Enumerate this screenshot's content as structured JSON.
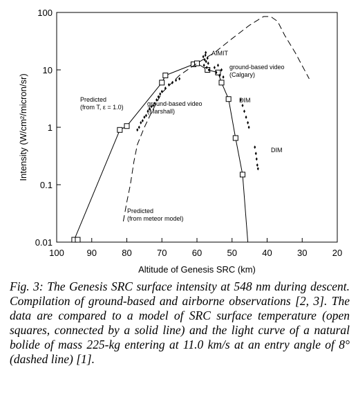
{
  "chart_data": {
    "type": "line",
    "xlabel": "Altitude of Genesis SRC (km)",
    "ylabel": "Intensity (W/cm²/micron/sr)",
    "xlim": [
      100,
      20
    ],
    "xticks": [
      100,
      90,
      80,
      70,
      60,
      50,
      40,
      30,
      20
    ],
    "ylim": [
      0.01,
      100
    ],
    "yticks": [
      100,
      10,
      1,
      0.1,
      0.01
    ],
    "ylog": true,
    "series": [
      {
        "style": "solid",
        "x": [
          95,
          82,
          80,
          70,
          69,
          61,
          60,
          57,
          54,
          53,
          51,
          49,
          47,
          45.5
        ],
        "values": [
          0.011,
          0.9,
          1.05,
          6,
          8,
          12.5,
          13,
          10,
          9,
          6,
          3.1,
          0.65,
          0.15,
          0.01
        ]
      },
      {
        "style": "squares",
        "x": [
          95,
          94,
          82,
          80,
          70,
          69,
          61,
          60,
          57,
          54,
          53,
          51,
          49,
          47
        ],
        "values": [
          0.011,
          0.011,
          0.9,
          1.05,
          6,
          8,
          12.5,
          13,
          10,
          9,
          6,
          3.1,
          0.65,
          0.15
        ]
      },
      {
        "style": "dashed",
        "x": [
          81,
          80,
          79,
          78,
          77,
          75,
          73,
          70,
          65,
          60,
          55,
          50,
          45,
          41,
          39,
          37,
          35,
          32,
          28
        ],
        "values": [
          0.023,
          0.05,
          0.1,
          0.25,
          0.5,
          1.0,
          1.8,
          4,
          8,
          13,
          20,
          35,
          60,
          85,
          85,
          70,
          40,
          20,
          7
        ]
      },
      {
        "style": "diamonds",
        "x": [
          77,
          76.5,
          76,
          75.5,
          75,
          74.5,
          74,
          73.5,
          73,
          72.5,
          72,
          71.5,
          71,
          70.5,
          70,
          69,
          68,
          67,
          66,
          65,
          58,
          57.8,
          57.6,
          57.4,
          57.2,
          57,
          56.8,
          57.5,
          58.2,
          56.6,
          55,
          54.5,
          54,
          53.5,
          53,
          52.5,
          47.5,
          47,
          46.5,
          46,
          45.5,
          45.2,
          43.5,
          43.2,
          43,
          42.8,
          42.6
        ],
        "values": [
          0.9,
          1.0,
          1.2,
          1.3,
          1.5,
          1.6,
          1.9,
          2.1,
          2.3,
          2.4,
          2.6,
          3.0,
          3.4,
          3.8,
          4.2,
          4.8,
          5.5,
          6.0,
          6.6,
          7.0,
          12,
          15,
          18,
          14,
          11,
          16,
          13,
          20,
          17,
          10,
          11,
          9,
          12,
          8,
          10,
          7.5,
          3,
          2.4,
          1.9,
          1.5,
          1.2,
          1.0,
          0.45,
          0.35,
          0.28,
          0.22,
          0.19
        ]
      }
    ],
    "annotations": [
      {
        "lines": [
          "AIMIT"
        ]
      },
      {
        "lines": [
          "ground-based video",
          "(Calgary)"
        ]
      },
      {
        "lines": [
          "DIM"
        ]
      },
      {
        "lines": [
          "DIM"
        ]
      },
      {
        "lines": [
          "ground-based video",
          "(Marshall)"
        ]
      },
      {
        "lines": [
          "Predicted",
          "(from T, ε = 1.0)"
        ]
      },
      {
        "lines": [
          "Predicted",
          "(from meteor model)"
        ]
      }
    ]
  },
  "caption": "Fig. 3: The Genesis SRC surface intensity at 548 nm during descent. Compilation of ground-based and airborne observations [2, 3]. The data are compared to a model of SRC surface temperature (open squares, connected by a solid line) and the light curve of a natural bolide of mass 225-kg entering at 11.0 km/s at an entry angle of 8° (dashed line) [1]."
}
